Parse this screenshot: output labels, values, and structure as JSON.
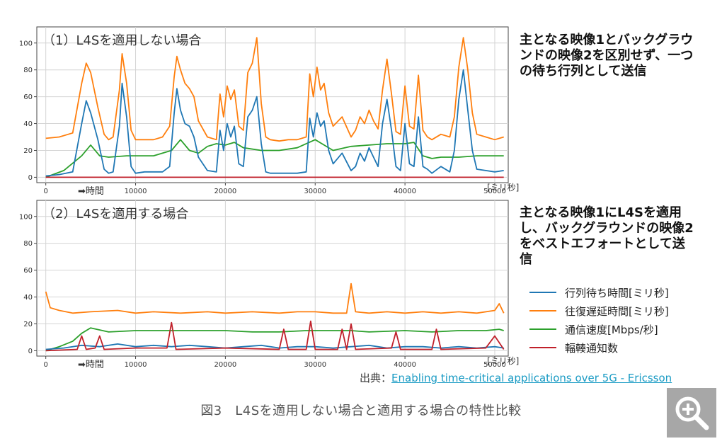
{
  "charts": [
    {
      "title": "（1）L4Sを適用しない場合",
      "x_unit": "[ミリ秒]",
      "time_arrow_label": "➡時間",
      "description": "主となる映像1とバックグラウンドの映像2を区別せず、一つの待ち行列として送信"
    },
    {
      "title": "（2）L4Sを適用する場合",
      "x_unit": "[ミリ秒]",
      "time_arrow_label": "➡時間",
      "description": "主となる映像1にL4Sを適用し、バックグラウンドの映像2をベストエフォートとして送信"
    }
  ],
  "legend": [
    {
      "label": "行列待ち時間[ミリ秒]",
      "color": "#1f77b4"
    },
    {
      "label": "往復遅延時間[ミリ秒]",
      "color": "#ff7f0e"
    },
    {
      "label": "通信速度[Mbps/秒]",
      "color": "#2ca02c"
    },
    {
      "label": "輻輳通知数",
      "color": "#c0202a"
    }
  ],
  "source": {
    "prefix": "出典：",
    "link_text": "Enabling time-critical applications over 5G - Ericsson"
  },
  "caption": "図3　L4Sを適用しない場合と適用する場合の特性比較",
  "zoom_icon": "zoom-in-icon",
  "chart_data": [
    {
      "type": "line",
      "title": "（1）L4Sを適用しない場合",
      "xlabel": "[ミリ秒]",
      "ylabel": "",
      "xlim": [
        -1000,
        51500
      ],
      "ylim": [
        -4,
        112
      ],
      "x_ticks": [
        0,
        10000,
        20000,
        30000,
        40000,
        50000
      ],
      "x_tick_labels": [
        "0",
        "10000",
        "20000",
        "30000",
        "40000",
        "50000"
      ],
      "y_ticks": [
        0,
        20,
        40,
        60,
        80,
        100
      ],
      "grid": true,
      "series": [
        {
          "name": "行列待ち時間[ミリ秒]",
          "color": "#1f77b4",
          "x": [
            0,
            1500,
            3000,
            4000,
            4500,
            5000,
            5800,
            6500,
            7000,
            7500,
            8200,
            8500,
            9000,
            9500,
            10000,
            11000,
            12000,
            13000,
            13800,
            14300,
            14600,
            15000,
            15500,
            16000,
            16500,
            17000,
            18000,
            19000,
            19400,
            19800,
            20200,
            20600,
            21000,
            21500,
            22000,
            22500,
            23000,
            23500,
            24000,
            24500,
            25000,
            26000,
            27000,
            28000,
            29000,
            29400,
            29800,
            30200,
            30600,
            31000,
            31500,
            32000,
            33000,
            34000,
            34500,
            35000,
            35500,
            36000,
            36500,
            37000,
            37500,
            38000,
            38500,
            39000,
            39500,
            40000,
            40500,
            41000,
            41500,
            42000,
            42500,
            43000,
            44000,
            45000,
            45500,
            46000,
            46500,
            47000,
            47500,
            48000,
            49000,
            50000,
            51000
          ],
          "values": [
            1,
            2,
            4,
            40,
            57,
            48,
            28,
            6,
            3,
            4,
            38,
            70,
            45,
            8,
            3,
            4,
            4,
            4,
            8,
            48,
            66,
            50,
            40,
            38,
            30,
            15,
            5,
            4,
            35,
            20,
            40,
            30,
            38,
            10,
            8,
            45,
            50,
            60,
            25,
            4,
            3,
            3,
            3,
            3,
            4,
            44,
            30,
            48,
            38,
            42,
            20,
            10,
            18,
            5,
            8,
            18,
            12,
            22,
            15,
            8,
            40,
            58,
            35,
            8,
            5,
            40,
            10,
            8,
            45,
            8,
            6,
            3,
            8,
            4,
            20,
            58,
            80,
            50,
            20,
            6,
            5,
            4,
            5
          ]
        },
        {
          "name": "往復遅延時間[ミリ秒]",
          "color": "#ff7f0e",
          "x": [
            0,
            1500,
            3000,
            4000,
            4500,
            5000,
            5800,
            6500,
            7000,
            7500,
            8200,
            8500,
            9000,
            9500,
            10000,
            11000,
            12000,
            13000,
            13800,
            14300,
            14600,
            15000,
            15500,
            16000,
            16500,
            17000,
            18000,
            19000,
            19400,
            19800,
            20200,
            20600,
            21000,
            21500,
            22000,
            22500,
            23000,
            23500,
            24000,
            24500,
            25000,
            26000,
            27000,
            28000,
            29000,
            29400,
            29800,
            30200,
            30600,
            31000,
            31500,
            32000,
            33000,
            34000,
            34500,
            35000,
            35500,
            36000,
            36500,
            37000,
            37500,
            38000,
            38500,
            39000,
            39500,
            40000,
            40500,
            41000,
            41500,
            42000,
            42500,
            43000,
            44000,
            45000,
            45500,
            46000,
            46500,
            47000,
            47500,
            48000,
            49000,
            50000,
            51000
          ],
          "values": [
            29,
            30,
            33,
            70,
            85,
            78,
            52,
            32,
            28,
            30,
            65,
            92,
            70,
            35,
            28,
            28,
            28,
            30,
            38,
            75,
            90,
            80,
            70,
            66,
            60,
            42,
            30,
            28,
            62,
            45,
            68,
            58,
            65,
            38,
            35,
            78,
            85,
            104,
            55,
            30,
            28,
            27,
            28,
            28,
            30,
            77,
            60,
            82,
            65,
            70,
            48,
            38,
            45,
            30,
            35,
            45,
            40,
            50,
            42,
            36,
            65,
            88,
            62,
            34,
            32,
            68,
            38,
            36,
            76,
            35,
            30,
            28,
            32,
            30,
            45,
            82,
            104,
            80,
            48,
            32,
            30,
            28,
            30
          ]
        },
        {
          "name": "通信速度[Mbps/秒]",
          "color": "#2ca02c",
          "x": [
            0,
            2000,
            4000,
            5000,
            6000,
            7000,
            9000,
            12000,
            14000,
            15000,
            16000,
            17000,
            18000,
            19000,
            20000,
            21000,
            22000,
            24000,
            26000,
            28000,
            30000,
            31000,
            32000,
            34000,
            36000,
            38000,
            40000,
            41000,
            42000,
            43000,
            44000,
            46000,
            48000,
            50000,
            51000
          ],
          "values": [
            0,
            5,
            16,
            24,
            16,
            15,
            16,
            16,
            20,
            28,
            20,
            18,
            23,
            25,
            24,
            26,
            22,
            20,
            20,
            22,
            28,
            24,
            20,
            23,
            24,
            25,
            25,
            26,
            16,
            14,
            15,
            15,
            16,
            16,
            16
          ]
        },
        {
          "name": "輻輳通知数",
          "color": "#c0202a",
          "x": [
            0,
            51000
          ],
          "values": [
            0,
            0
          ]
        }
      ]
    },
    {
      "type": "line",
      "title": "（2）L4Sを適用する場合",
      "xlabel": "[ミリ秒]",
      "ylabel": "",
      "xlim": [
        -1000,
        51500
      ],
      "ylim": [
        -4,
        112
      ],
      "x_ticks": [
        0,
        10000,
        20000,
        30000,
        40000,
        50000
      ],
      "x_tick_labels": [
        "0",
        "10000",
        "20000",
        "30000",
        "40000",
        "50000"
      ],
      "y_ticks": [
        0,
        20,
        40,
        60,
        80,
        100
      ],
      "grid": true,
      "series": [
        {
          "name": "行列待ち時間[ミリ秒]",
          "color": "#1f77b4",
          "x": [
            0,
            2000,
            4000,
            6000,
            8000,
            10000,
            12000,
            14000,
            16000,
            18000,
            20000,
            22000,
            24000,
            26000,
            28000,
            30000,
            32000,
            34000,
            36000,
            38000,
            40000,
            42000,
            44000,
            46000,
            48000,
            50000,
            51000
          ],
          "values": [
            1,
            2,
            4,
            3,
            5,
            3,
            4,
            3,
            4,
            3,
            2,
            3,
            4,
            2,
            3,
            3,
            2,
            3,
            4,
            2,
            3,
            3,
            2,
            3,
            2,
            3,
            2
          ]
        },
        {
          "name": "往復遅延時間[ミリ秒]",
          "color": "#ff7f0e",
          "x": [
            0,
            500,
            1500,
            3000,
            5000,
            8000,
            10000,
            12000,
            15000,
            18000,
            20000,
            23000,
            26000,
            28000,
            30000,
            32000,
            33500,
            34000,
            34500,
            36000,
            38000,
            40000,
            42000,
            44000,
            46000,
            48000,
            50000,
            50500,
            51000
          ],
          "values": [
            44,
            32,
            30,
            28,
            29,
            30,
            28,
            29,
            28,
            29,
            28,
            29,
            28,
            29,
            29,
            28,
            28,
            50,
            29,
            28,
            29,
            28,
            29,
            28,
            29,
            28,
            30,
            35,
            28
          ]
        },
        {
          "name": "通信速度[Mbps/秒]",
          "color": "#2ca02c",
          "x": [
            0,
            1500,
            3000,
            4000,
            5000,
            7000,
            10000,
            13000,
            16000,
            20000,
            23000,
            26000,
            29000,
            32000,
            34000,
            36000,
            40000,
            43000,
            46000,
            49000,
            50500,
            51000
          ],
          "values": [
            0,
            3,
            7,
            13,
            17,
            14,
            15,
            15,
            15,
            15,
            14,
            14,
            15,
            15,
            15,
            14,
            15,
            14,
            15,
            15,
            16,
            15
          ]
        },
        {
          "name": "輻輳通知数",
          "color": "#c0202a",
          "x": [
            0,
            3500,
            4000,
            4500,
            5500,
            6000,
            6500,
            10000,
            13500,
            14000,
            14500,
            20000,
            26000,
            26500,
            27000,
            29000,
            29500,
            30000,
            32500,
            33000,
            33500,
            34000,
            34500,
            38500,
            39000,
            39500,
            43000,
            43500,
            44000,
            49000,
            50000,
            51000
          ],
          "values": [
            0,
            1,
            11,
            1,
            2,
            11,
            1,
            2,
            2,
            21,
            1,
            2,
            1,
            16,
            1,
            1,
            22,
            1,
            1,
            16,
            1,
            20,
            1,
            2,
            14,
            1,
            1,
            16,
            1,
            2,
            11,
            1
          ]
        }
      ]
    }
  ]
}
